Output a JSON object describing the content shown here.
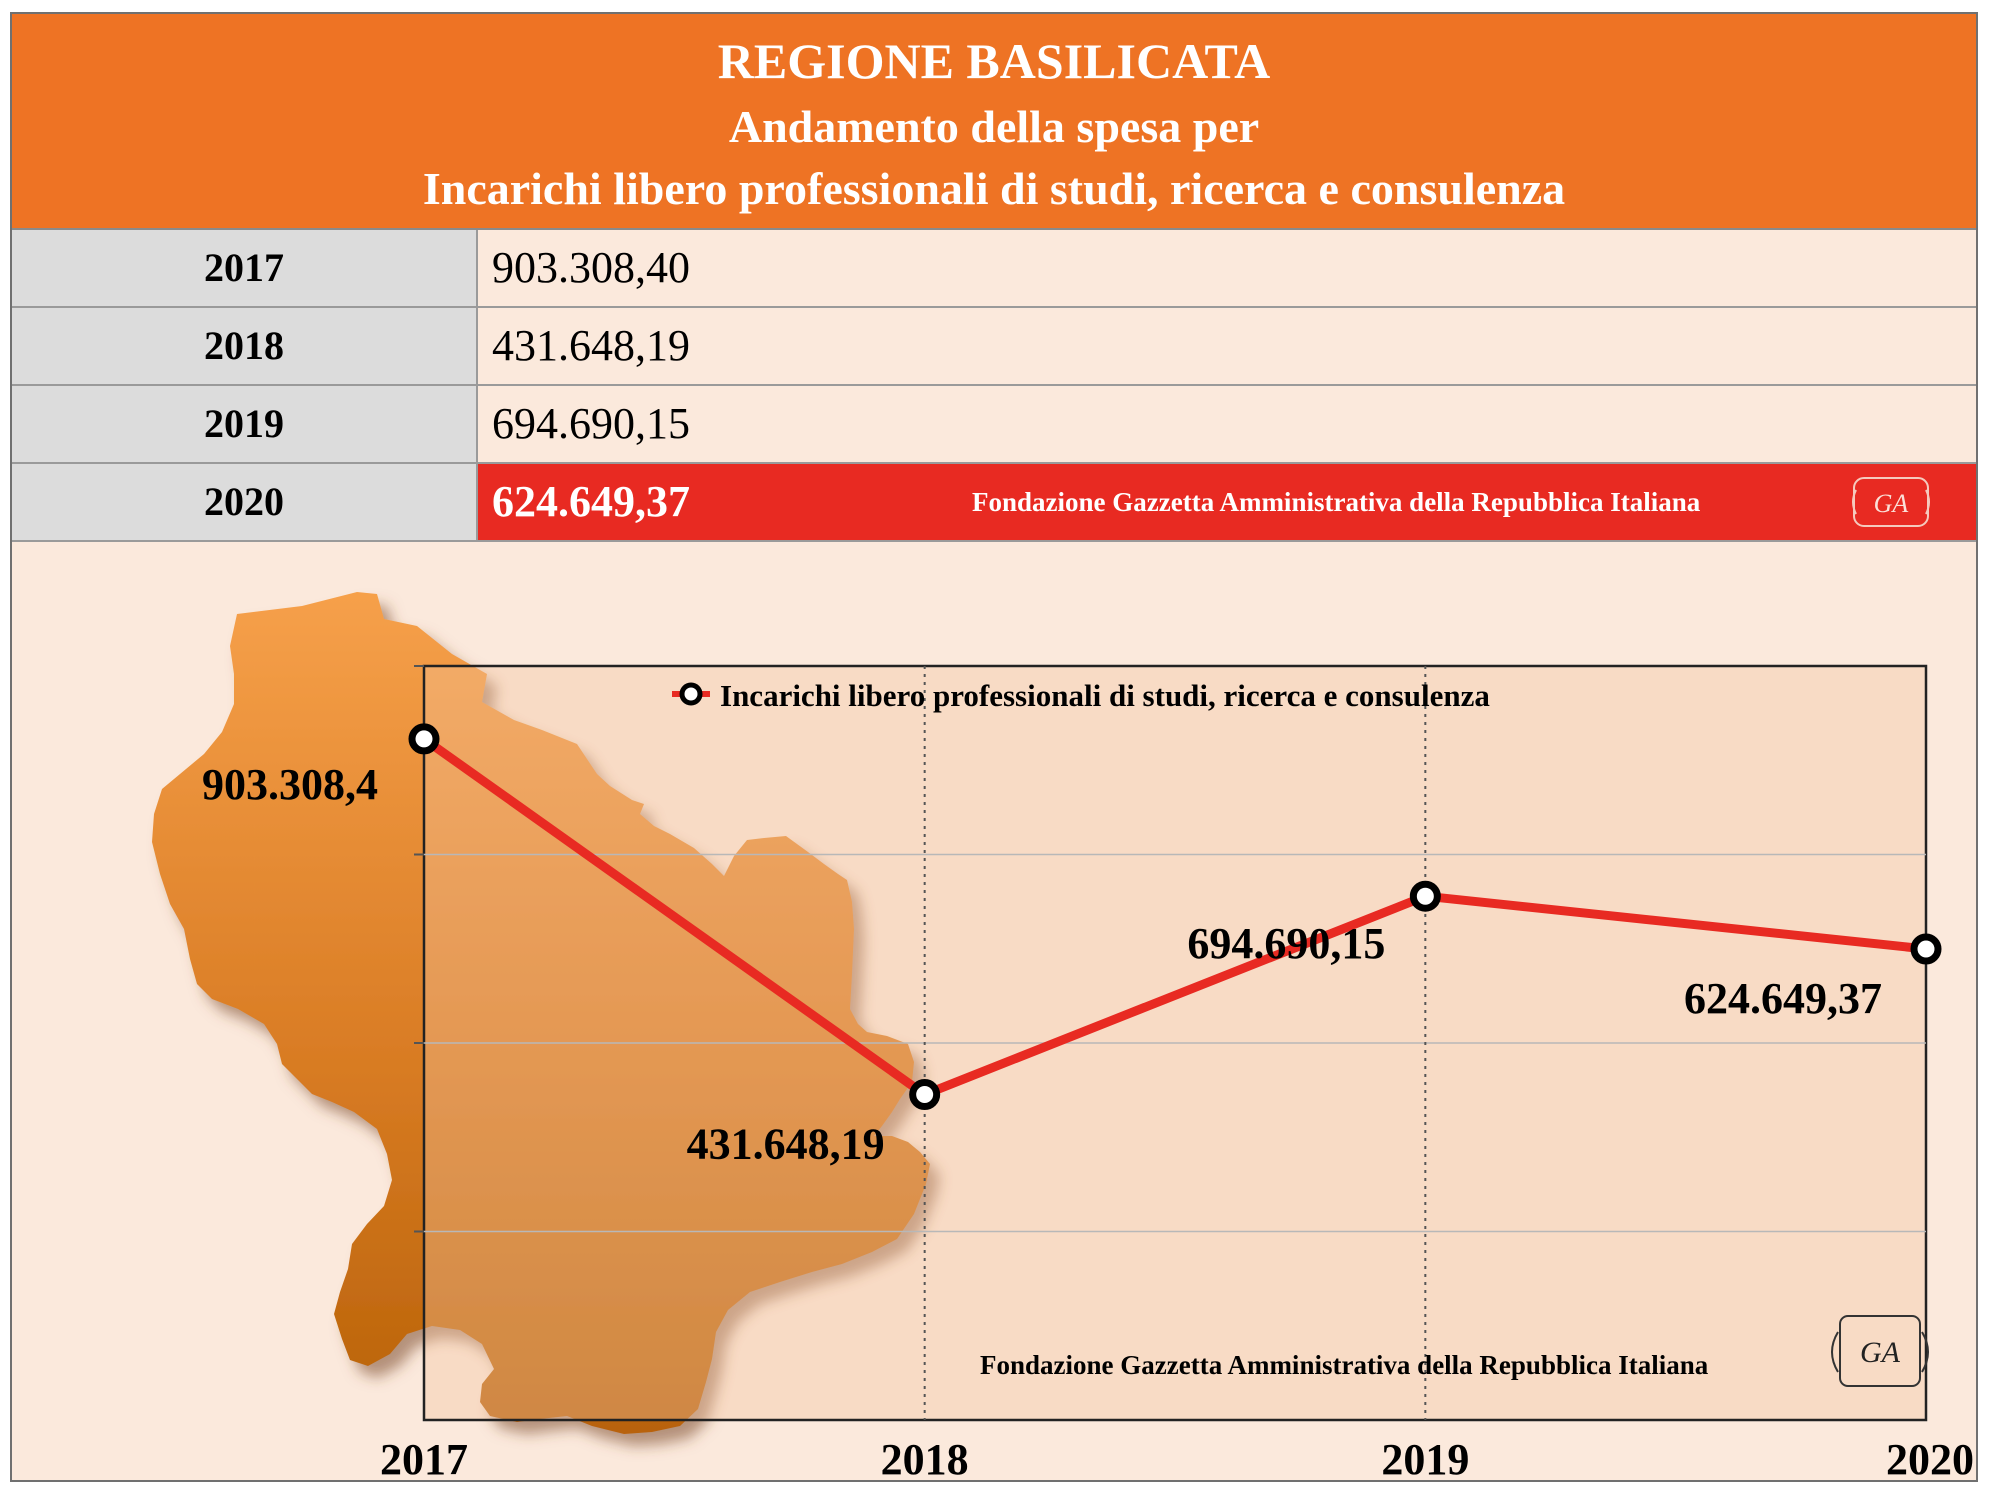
{
  "header": {
    "region": "REGIONE BASILICATA",
    "subtitle": "Andamento della spesa per",
    "category": "Incarichi libero professionali di studi, ricerca e consulenza"
  },
  "table": {
    "rows": [
      {
        "year": "2017",
        "value": "903.308,40"
      },
      {
        "year": "2018",
        "value": "431.648,19"
      },
      {
        "year": "2019",
        "value": "694.690,15"
      },
      {
        "year": "2020",
        "value": "624.649,37"
      }
    ],
    "credit": "Fondazione Gazzetta Amministrativa della Repubblica Italiana",
    "logo_text": "GA"
  },
  "chart_data": {
    "type": "line",
    "title": "",
    "xlabel": "",
    "ylabel": "",
    "categories": [
      "2017",
      "2018",
      "2019",
      "2020"
    ],
    "ylim": [
      0,
      1000000
    ],
    "grid": true,
    "legend_position": "top-center",
    "series": [
      {
        "name": "Incarichi libero professionali di studi, ricerca e consulenza",
        "values": [
          903308.4,
          431648.19,
          694690.15,
          624649.37
        ],
        "labels": [
          "903.308,4",
          "431.648,19",
          "694.690,15",
          "624.649,37"
        ],
        "color": "#e82a22"
      }
    ],
    "credit": "Fondazione Gazzetta Amministrativa della Repubblica Italiana",
    "logo_text": "GA",
    "colors": {
      "line": "#e82a22",
      "header": "#ee7324",
      "highlight": "#e82a22",
      "map": "#d97c24"
    }
  }
}
